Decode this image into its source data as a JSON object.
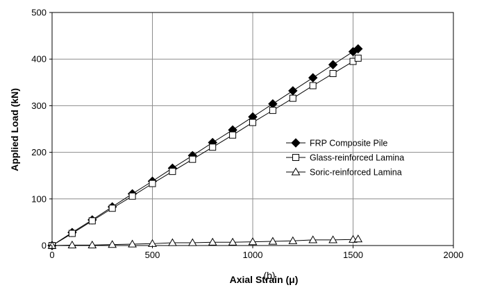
{
  "chart_data": {
    "type": "line",
    "title": "",
    "xlabel": "Axial Strain (μ)",
    "ylabel": "Applied Load (kN)",
    "xlim": [
      0,
      2000
    ],
    "ylim": [
      0,
      500
    ],
    "x_ticks": [
      0,
      500,
      1000,
      1500,
      2000
    ],
    "y_ticks": [
      0,
      100,
      200,
      300,
      400,
      500
    ],
    "grid": true,
    "legend_position": "right",
    "annotation": "(b)",
    "series": [
      {
        "name": "FRP Composite Pile",
        "marker": "filled-diamond",
        "color": "#000000",
        "points": [
          [
            0,
            0
          ],
          [
            100,
            28
          ],
          [
            200,
            55
          ],
          [
            300,
            83
          ],
          [
            400,
            111
          ],
          [
            500,
            138
          ],
          [
            600,
            166
          ],
          [
            700,
            193
          ],
          [
            800,
            221
          ],
          [
            900,
            248
          ],
          [
            1000,
            276
          ],
          [
            1100,
            304
          ],
          [
            1200,
            332
          ],
          [
            1300,
            360
          ],
          [
            1400,
            388
          ],
          [
            1500,
            416
          ],
          [
            1525,
            422
          ]
        ]
      },
      {
        "name": "Glass-reinforced Lamina",
        "marker": "open-square",
        "color": "#000000",
        "points": [
          [
            0,
            0
          ],
          [
            100,
            26
          ],
          [
            200,
            53
          ],
          [
            300,
            80
          ],
          [
            400,
            106
          ],
          [
            500,
            133
          ],
          [
            600,
            159
          ],
          [
            700,
            185
          ],
          [
            800,
            211
          ],
          [
            900,
            237
          ],
          [
            1000,
            264
          ],
          [
            1100,
            290
          ],
          [
            1200,
            316
          ],
          [
            1300,
            343
          ],
          [
            1400,
            369
          ],
          [
            1500,
            395
          ],
          [
            1525,
            402
          ]
        ]
      },
      {
        "name": "Soric-reinforced Lamina",
        "marker": "open-triangle",
        "color": "#000000",
        "points": [
          [
            0,
            0
          ],
          [
            100,
            1
          ],
          [
            200,
            1
          ],
          [
            300,
            2
          ],
          [
            400,
            3
          ],
          [
            500,
            4
          ],
          [
            600,
            6
          ],
          [
            700,
            6
          ],
          [
            800,
            7
          ],
          [
            900,
            7
          ],
          [
            1000,
            8
          ],
          [
            1100,
            9
          ],
          [
            1200,
            10
          ],
          [
            1300,
            12
          ],
          [
            1400,
            12
          ],
          [
            1500,
            13
          ],
          [
            1525,
            14
          ]
        ]
      }
    ]
  }
}
